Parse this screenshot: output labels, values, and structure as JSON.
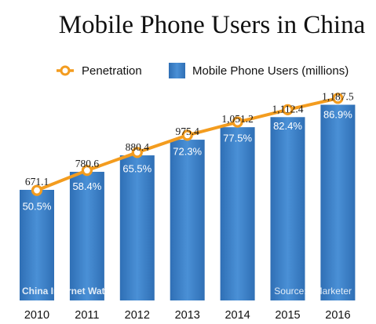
{
  "chart_data": {
    "type": "bar",
    "title": "Mobile Phone Users in China",
    "categories": [
      "2010",
      "2011",
      "2012",
      "2013",
      "2014",
      "2015",
      "2016"
    ],
    "series": [
      {
        "name": "Mobile Phone Users (millions)",
        "kind": "bar",
        "color": "#3b7fc6",
        "values": [
          671.1,
          780.6,
          880.4,
          975.4,
          1051.2,
          1112.4,
          1187.5
        ],
        "labels": [
          "671.1",
          "780.6",
          "880.4",
          "975.4",
          "1,051.2",
          "1,112.4",
          "1,187.5"
        ]
      },
      {
        "name": "Penetration",
        "kind": "line",
        "color": "#f39c1f",
        "values": [
          50.5,
          58.4,
          65.5,
          72.3,
          77.5,
          82.4,
          86.9
        ],
        "labels": [
          "50.5%",
          "58.4%",
          "65.5%",
          "72.3%",
          "77.5%",
          "82.4%",
          "86.9%"
        ]
      }
    ],
    "legend": {
      "position": "top"
    },
    "grid": false
  },
  "watermark": "China Internet Watch",
  "source": "Source: eMarketer"
}
